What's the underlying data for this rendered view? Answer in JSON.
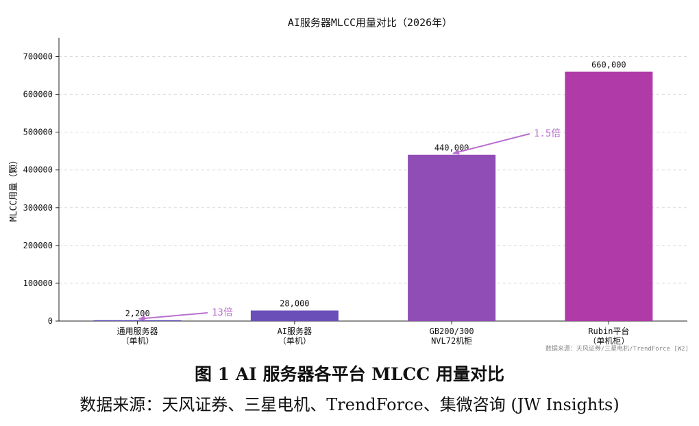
{
  "chart_data": {
    "type": "bar",
    "title": "AI服务器MLCC用量对比（2026年）",
    "xlabel": "",
    "ylabel": "MLCC用量（颗）",
    "ylim": [
      0,
      750000
    ],
    "yticks": [
      "0",
      "100000",
      "200000",
      "300000",
      "400000",
      "500000",
      "600000",
      "700000"
    ],
    "ytick_values": [
      0,
      100000,
      200000,
      300000,
      400000,
      500000,
      600000,
      700000
    ],
    "grid": true,
    "categories": [
      [
        "通用服务器",
        "（单机）"
      ],
      [
        "AI服务器",
        "（单机）"
      ],
      [
        "GB200/300",
        "NVL72机柜"
      ],
      [
        "Rubin平台",
        "（单机柜）"
      ]
    ],
    "values": [
      2200,
      28000,
      440000,
      660000
    ],
    "value_labels": [
      "2,200",
      "28,000",
      "440,000",
      "660,000"
    ],
    "bar_colors": [
      "#5b4cb8",
      "#6a4fb8",
      "#8f4db5",
      "#b03aa8"
    ],
    "annotations": [
      {
        "text": "13倍",
        "from_index": 0,
        "to_index": 1
      },
      {
        "text": "1.5倍",
        "from_index": 2,
        "to_index": 3
      }
    ],
    "annotation_color": "#b86fcf",
    "source_note": "数据来源：天风证券/三星电机/TrendForce [W2]"
  },
  "caption": {
    "title": "图 1 AI 服务器各平台 MLCC 用量对比",
    "source": "数据来源：天风证券、三星电机、TrendForce、集微咨询 (JW Insights)"
  }
}
